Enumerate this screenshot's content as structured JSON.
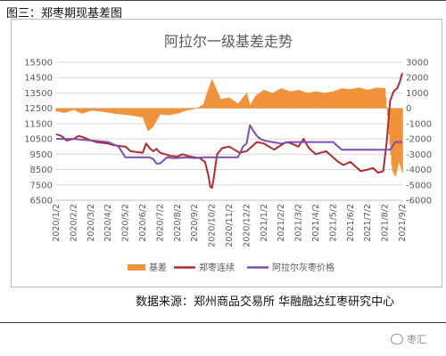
{
  "header": {
    "label": "图三：郑枣期现基差图"
  },
  "source": {
    "text": "数据来源：郑州商品交易所  华融融达红枣研究中心"
  },
  "watermark": {
    "text": "枣汇"
  },
  "chart_data": {
    "type": "bar+line",
    "title": "阿拉尔一级基差走势",
    "x_tick_labels": [
      "2020/1/2",
      "2020/2/2",
      "2020/3/2",
      "2020/4/2",
      "2020/5/2",
      "2020/6/2",
      "2020/7/2",
      "2020/8/2",
      "2020/9/2",
      "2020/10/2",
      "2020/11/2",
      "2020/12/2",
      "2021/1/2",
      "2021/2/2",
      "2021/3/2",
      "2021/4/2",
      "2021/5/2",
      "2021/6/2",
      "2021/7/2",
      "2021/8/2",
      "2021/9/2"
    ],
    "y_left": {
      "min": 6500,
      "max": 15500,
      "step": 1000,
      "ticks": [
        6500,
        7500,
        8500,
        9500,
        10500,
        11500,
        12500,
        13500,
        14500,
        15500
      ]
    },
    "y_right": {
      "min": -6000,
      "max": 3000,
      "step": 1000,
      "ticks": [
        -6000,
        -5000,
        -4000,
        -3000,
        -2000,
        -1000,
        0,
        1000,
        2000,
        3000
      ]
    },
    "legend": {
      "placement": "bottom"
    },
    "colors": {
      "basis": "#F0923A",
      "futures": "#B22A2E",
      "spot": "#7A4FB0"
    },
    "series": [
      {
        "name": "基差",
        "kind": "bar",
        "axis": "right",
        "x": [
          0,
          0.5,
          1,
          1.5,
          2,
          2.5,
          3,
          3.5,
          4,
          4.5,
          5,
          5.3,
          5.6,
          6,
          6.5,
          7,
          7.5,
          8,
          8.5,
          8.8,
          9,
          9.5,
          10,
          10.5,
          11,
          11.2,
          11.5,
          12,
          12.5,
          13,
          13.5,
          14,
          14.5,
          15,
          15.5,
          16,
          16.5,
          17,
          17.5,
          18,
          18.5,
          19,
          19.2,
          19.4,
          19.6,
          19.8,
          20
        ],
        "values": [
          -200,
          -300,
          -100,
          -350,
          -150,
          -200,
          -280,
          -380,
          -420,
          -500,
          -600,
          -1500,
          -1200,
          -400,
          -450,
          -350,
          -150,
          -50,
          250,
          1300,
          1900,
          600,
          700,
          300,
          1000,
          200,
          800,
          1200,
          1000,
          1300,
          1100,
          1200,
          1000,
          1100,
          1000,
          1100,
          1300,
          1250,
          1350,
          1200,
          1350,
          1300,
          -1200,
          -4000,
          -4500,
          -3500,
          -4200
        ]
      },
      {
        "name": "郑枣连续",
        "kind": "line",
        "axis": "left",
        "x": [
          0,
          0.3,
          0.6,
          1,
          1.3,
          1.6,
          2,
          2.3,
          2.6,
          3,
          3.3,
          3.6,
          4,
          4.3,
          4.6,
          5,
          5.2,
          5.4,
          5.6,
          5.8,
          6,
          6.3,
          6.6,
          7,
          7.3,
          7.6,
          8,
          8.3,
          8.6,
          8.8,
          8.9,
          9,
          9.1,
          9.3,
          9.6,
          10,
          10.3,
          10.6,
          11,
          11.3,
          11.6,
          12,
          12.3,
          12.6,
          13,
          13.3,
          13.6,
          14,
          14.3,
          14.6,
          15,
          15.3,
          15.6,
          16,
          16.3,
          16.6,
          17,
          17.3,
          17.6,
          18,
          18.3,
          18.6,
          18.9,
          19.1,
          19.3,
          19.5,
          19.7,
          19.85,
          20
        ],
        "values": [
          10800,
          10700,
          10400,
          10500,
          10700,
          10600,
          10400,
          10300,
          10250,
          10200,
          10100,
          10050,
          10000,
          9700,
          9650,
          9600,
          10200,
          9900,
          9700,
          9850,
          9600,
          9500,
          9400,
          9350,
          9500,
          9400,
          9300,
          9250,
          9000,
          8100,
          7400,
          7300,
          7900,
          9500,
          9900,
          10000,
          9800,
          9600,
          9700,
          10000,
          10300,
          10200,
          10000,
          9800,
          10100,
          10300,
          10200,
          10000,
          10500,
          9900,
          9500,
          9600,
          9700,
          9300,
          9000,
          8800,
          9000,
          8700,
          8400,
          8500,
          8600,
          8300,
          8400,
          10300,
          13000,
          13600,
          13800,
          14200,
          14800
        ]
      },
      {
        "name": "阿拉尔灰枣价格",
        "kind": "line",
        "axis": "left",
        "x": [
          0,
          1,
          2,
          3,
          3.6,
          4,
          4.5,
          5,
          5.4,
          5.6,
          5.8,
          6,
          6.4,
          6.7,
          7,
          7.5,
          8,
          8.5,
          9,
          9.5,
          10,
          10.5,
          10.8,
          11,
          11.2,
          11.4,
          11.6,
          11.8,
          12,
          12.5,
          13,
          13.5,
          14,
          14.5,
          15,
          15.5,
          16,
          16.5,
          17,
          17.5,
          18,
          18.5,
          19,
          19.3,
          19.6,
          20
        ],
        "values": [
          10500,
          10500,
          10400,
          10300,
          10000,
          9300,
          9300,
          9300,
          9300,
          9200,
          8900,
          8900,
          9300,
          9250,
          9250,
          9300,
          9250,
          9300,
          9300,
          9300,
          9300,
          9300,
          10000,
          10200,
          11400,
          11000,
          10700,
          10500,
          10400,
          10300,
          10200,
          10300,
          10300,
          10300,
          10300,
          10300,
          10300,
          9800,
          9800,
          9800,
          9800,
          9800,
          9800,
          9800,
          10300,
          10300
        ]
      }
    ]
  }
}
